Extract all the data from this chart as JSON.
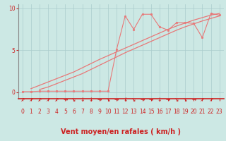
{
  "title": "",
  "xlabel": "Vent moyen/en rafales ( km/h )",
  "ylabel": "",
  "bg_color": "#cce8e4",
  "line_color": "#e87878",
  "grid_color": "#aacccc",
  "axis_color": "#cc2222",
  "left_spine_color": "#888888",
  "xlim": [
    -0.5,
    23.5
  ],
  "ylim": [
    -0.8,
    10.5
  ],
  "yticks": [
    0,
    5,
    10
  ],
  "xticks": [
    0,
    1,
    2,
    3,
    4,
    5,
    6,
    7,
    8,
    9,
    10,
    11,
    12,
    13,
    14,
    15,
    16,
    17,
    18,
    19,
    20,
    21,
    22,
    23
  ],
  "line1_x": [
    0,
    1,
    2,
    3,
    4,
    5,
    6,
    7,
    8,
    9,
    10,
    11,
    12,
    13,
    14,
    15,
    16,
    17,
    18,
    19,
    20,
    21,
    22,
    23
  ],
  "line1_y": [
    0.05,
    0.05,
    0.1,
    0.1,
    0.1,
    0.1,
    0.1,
    0.1,
    0.1,
    0.1,
    0.1,
    5.1,
    9.1,
    7.5,
    9.3,
    9.3,
    7.8,
    7.4,
    8.3,
    8.3,
    8.2,
    6.5,
    9.4,
    9.2
  ],
  "line2_x": [
    1,
    2,
    3,
    4,
    5,
    6,
    7,
    8,
    9,
    10,
    11,
    12,
    13,
    14,
    15,
    16,
    17,
    18,
    19,
    20,
    21,
    22,
    23
  ],
  "line2_y": [
    0.4,
    0.8,
    1.2,
    1.6,
    2.0,
    2.4,
    2.9,
    3.4,
    3.9,
    4.35,
    4.8,
    5.25,
    5.7,
    6.15,
    6.6,
    7.05,
    7.5,
    7.9,
    8.25,
    8.6,
    8.9,
    9.2,
    9.4
  ],
  "line3_x": [
    2,
    3,
    4,
    5,
    6,
    7,
    8,
    9,
    10,
    11,
    12,
    13,
    14,
    15,
    16,
    17,
    18,
    19,
    20,
    21,
    22,
    23
  ],
  "line3_y": [
    0.3,
    0.6,
    1.0,
    1.4,
    1.8,
    2.2,
    2.7,
    3.2,
    3.7,
    4.2,
    4.7,
    5.15,
    5.6,
    6.05,
    6.5,
    6.95,
    7.4,
    7.8,
    8.15,
    8.5,
    8.8,
    9.1
  ],
  "arrows": [
    "↗",
    "↗",
    "↗",
    "↗",
    "↗",
    "→",
    "↘",
    "↓",
    "↓",
    "→",
    "↘",
    "→",
    "↓",
    "↘",
    "→",
    "→",
    "↓",
    "→",
    "↘",
    "↘",
    "→",
    "↗",
    "↗"
  ],
  "xlabel_fontsize": 7,
  "tick_fontsize": 5.5,
  "arrow_fontsize": 5.5
}
